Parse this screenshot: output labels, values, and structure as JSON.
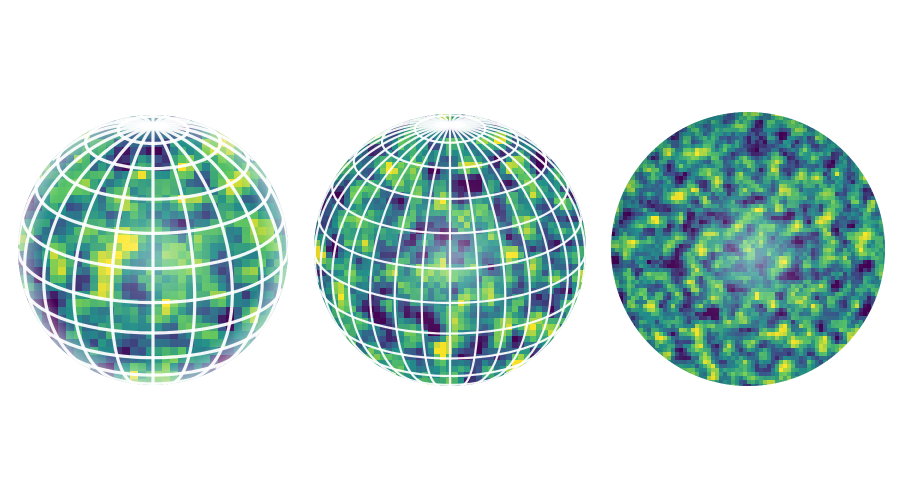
{
  "figure": {
    "background": "#ffffff",
    "colormap": [
      "#440154",
      "#3b528b",
      "#21918c",
      "#5ec962",
      "#fde725"
    ],
    "grid_color": "#ffffff",
    "panels": [
      {
        "name": "coarse-grid-sphere",
        "grid_lines": "visible",
        "grid_density": "coarse",
        "noise": "coarse"
      },
      {
        "name": "fine-grid-sphere",
        "grid_lines": "visible",
        "grid_density": "fine",
        "noise": "medium"
      },
      {
        "name": "no-grid-sphere",
        "grid_lines": "hidden",
        "grid_density": "none",
        "noise": "fine"
      }
    ]
  }
}
